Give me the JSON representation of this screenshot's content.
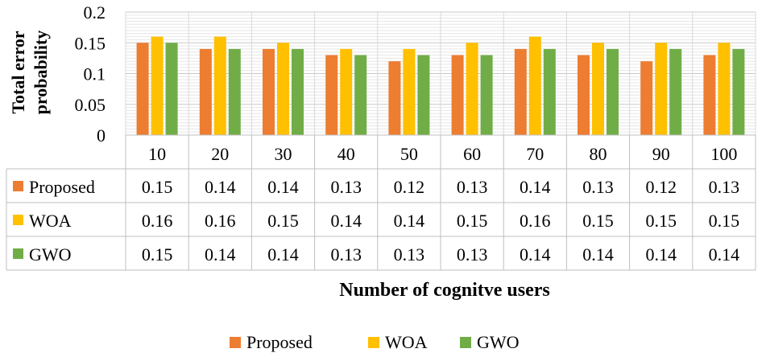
{
  "chart_data": {
    "type": "bar",
    "title": "",
    "xlabel": "Number of cognitve users",
    "ylabel_lines": [
      "Total error",
      "probability"
    ],
    "ylim": [
      0,
      0.2
    ],
    "yticks": [
      0,
      0.05,
      0.1,
      0.15,
      0.2
    ],
    "ytick_labels": [
      "0",
      "0.05",
      "0.1",
      "0.15",
      "0.2"
    ],
    "grid": true,
    "legend_position": "bottom",
    "categories": [
      "10",
      "20",
      "30",
      "40",
      "50",
      "60",
      "70",
      "80",
      "90",
      "100"
    ],
    "series": [
      {
        "name": "Proposed",
        "color": "#ED7D31",
        "values": [
          0.15,
          0.14,
          0.14,
          0.13,
          0.12,
          0.13,
          0.14,
          0.13,
          0.12,
          0.13
        ],
        "labels": [
          "0.15",
          "0.14",
          "0.14",
          "0.13",
          "0.12",
          "0.13",
          "0.14",
          "0.13",
          "0.12",
          "0.13"
        ]
      },
      {
        "name": "WOA",
        "color": "#FFC000",
        "values": [
          0.16,
          0.16,
          0.15,
          0.14,
          0.14,
          0.15,
          0.16,
          0.15,
          0.15,
          0.15
        ],
        "labels": [
          "0.16",
          "0.16",
          "0.15",
          "0.14",
          "0.14",
          "0.15",
          "0.16",
          "0.15",
          "0.15",
          "0.15"
        ]
      },
      {
        "name": "GWO",
        "color": "#70AD47",
        "values": [
          0.15,
          0.14,
          0.14,
          0.13,
          0.13,
          0.13,
          0.14,
          0.14,
          0.14,
          0.14
        ],
        "labels": [
          "0.15",
          "0.14",
          "0.14",
          "0.13",
          "0.13",
          "0.13",
          "0.14",
          "0.14",
          "0.14",
          "0.14"
        ]
      }
    ]
  }
}
